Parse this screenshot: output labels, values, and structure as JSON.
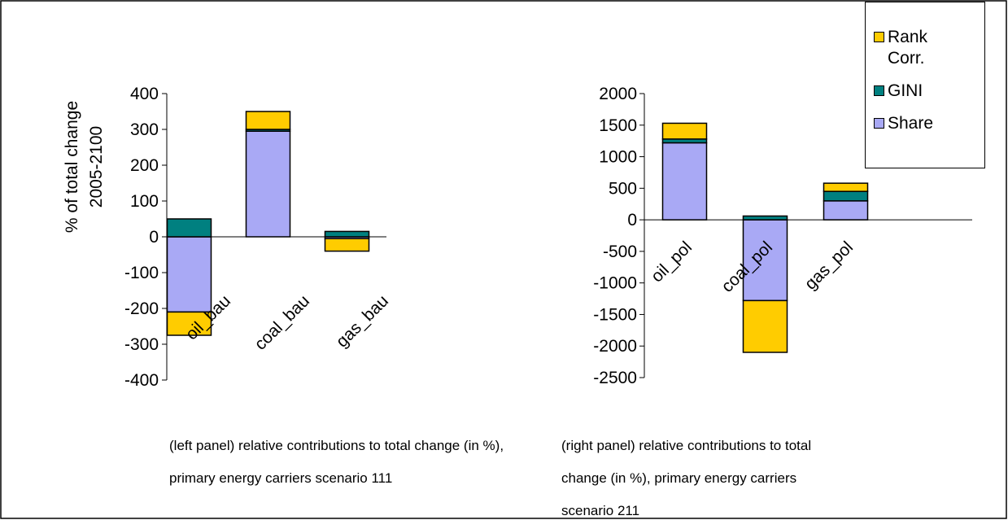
{
  "chart_data": [
    {
      "type": "stacked-bar",
      "ylabel": [
        "% of total change",
        "2005-2100"
      ],
      "categories": [
        "oil_bau",
        "coal_bau",
        "gas_bau"
      ],
      "series": [
        {
          "name": "Share",
          "color": "#a9a9f5",
          "values": [
            -210,
            295,
            -5
          ]
        },
        {
          "name": "GINI",
          "color": "#008080",
          "values": [
            50,
            5,
            15
          ]
        },
        {
          "name": "Rank Corr.",
          "color": "#ffcc00",
          "values": [
            -65,
            50,
            -35
          ]
        }
      ],
      "ylim": [
        -400,
        400
      ],
      "yticks": [
        -400,
        -300,
        -200,
        -100,
        0,
        100,
        200,
        300,
        400
      ],
      "legend": false,
      "caption": "(left panel) relative contributions to total change (in %), primary energy carriers scenario 111"
    },
    {
      "type": "stacked-bar",
      "categories": [
        "oil_pol",
        "coal_pol",
        "gas_pol"
      ],
      "series": [
        {
          "name": "Share",
          "color": "#a9a9f5",
          "values": [
            1220,
            -1280,
            300
          ]
        },
        {
          "name": "GINI",
          "color": "#008080",
          "values": [
            60,
            60,
            150
          ]
        },
        {
          "name": "Rank Corr.",
          "color": "#ffcc00",
          "values": [
            250,
            -820,
            130
          ]
        }
      ],
      "ylim": [
        -2500,
        2000
      ],
      "yticks": [
        -2500,
        -2000,
        -1500,
        -1000,
        -500,
        0,
        500,
        1000,
        1500,
        2000
      ],
      "legend": true,
      "caption": "(right panel) relative contributions to total change (in %), primary energy carriers scenario 211"
    }
  ]
}
